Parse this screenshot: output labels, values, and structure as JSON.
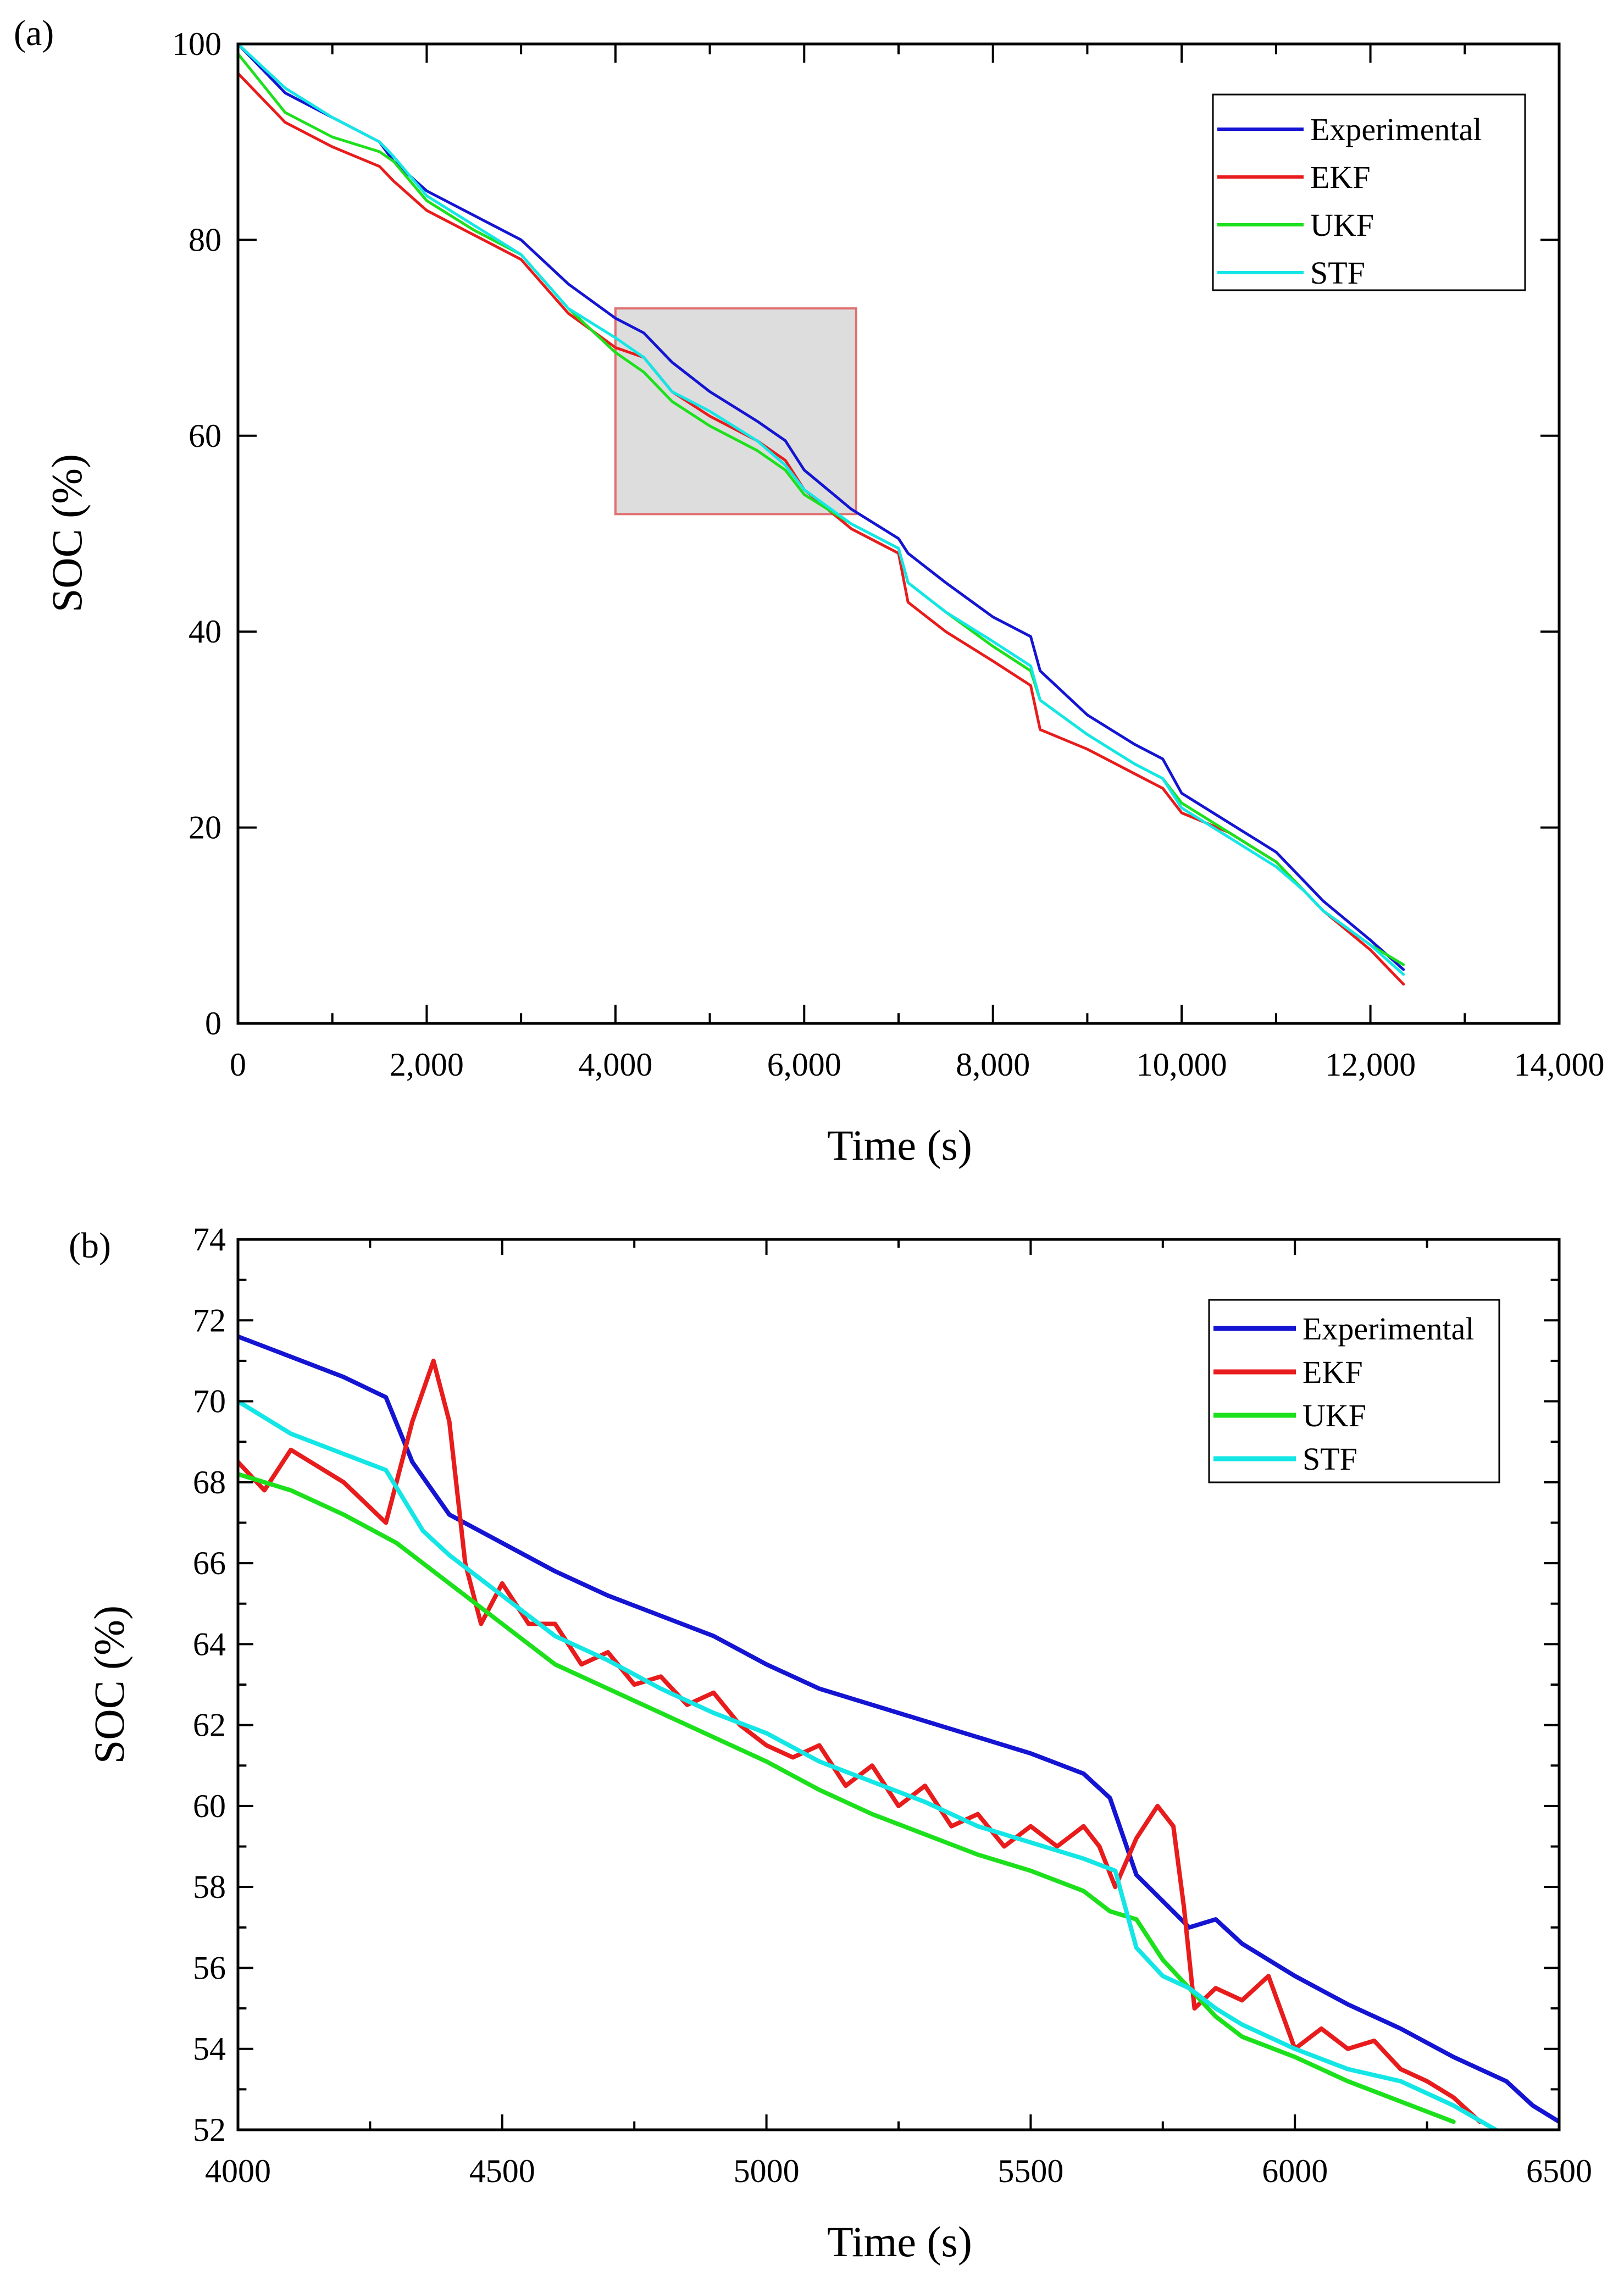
{
  "chart_data": [
    {
      "panel": "(a)",
      "type": "line",
      "xlabel": "Time (s)",
      "ylabel": "SOC (%)",
      "xlim": [
        0,
        14000
      ],
      "ylim": [
        0,
        100
      ],
      "xticks": [
        0,
        2000,
        4000,
        6000,
        8000,
        10000,
        12000,
        14000
      ],
      "xtick_labels": [
        "0",
        "2,000",
        "4,000",
        "6,000",
        "8,000",
        "10,000",
        "12,000",
        "14,000"
      ],
      "yticks": [
        0,
        20,
        40,
        60,
        80,
        100
      ],
      "ytick_labels": [
        "0",
        "20",
        "40",
        "60",
        "80",
        "100"
      ],
      "legend": [
        "Experimental",
        "EKF",
        "UKF",
        "STF"
      ],
      "legend_position": "top-right",
      "zoom_box": {
        "x": [
          4000,
          6550
        ],
        "y": [
          52,
          73
        ]
      },
      "series": [
        {
          "name": "Experimental",
          "color": "#1414d2",
          "x": [
            0,
            500,
            1000,
            1500,
            1650,
            2000,
            2500,
            3000,
            3500,
            4000,
            4300,
            4600,
            5000,
            5500,
            5800,
            6000,
            6500,
            7000,
            7100,
            7500,
            8000,
            8400,
            8500,
            9000,
            9500,
            9800,
            10000,
            10500,
            11000,
            11300,
            11500,
            12000,
            12350
          ],
          "y": [
            100,
            95,
            92.5,
            90,
            88,
            85,
            82.5,
            80,
            75.5,
            72,
            70.5,
            67.5,
            64.5,
            61.5,
            59.5,
            56.5,
            52.5,
            49.5,
            48,
            45,
            41.5,
            39.5,
            36,
            31.5,
            28.5,
            27,
            23.5,
            20.5,
            17.5,
            14.5,
            12.5,
            8.5,
            5.5
          ]
        },
        {
          "name": "EKF",
          "color": "#e81c1c",
          "x": [
            0,
            500,
            1000,
            1500,
            1650,
            2000,
            2500,
            3000,
            3500,
            4000,
            4300,
            4600,
            5000,
            5500,
            5800,
            6000,
            6500,
            7000,
            7100,
            7500,
            8000,
            8400,
            8500,
            9000,
            9500,
            9800,
            10000,
            10500,
            11000,
            11300,
            11500,
            12000,
            12350
          ],
          "y": [
            97,
            92,
            89.5,
            87.5,
            86,
            83,
            80.5,
            78,
            72.5,
            69,
            68,
            64.5,
            62,
            59.5,
            57.5,
            54.5,
            50.5,
            48,
            43,
            40,
            37,
            34.5,
            30,
            28,
            25.5,
            24,
            21.5,
            19.5,
            16.5,
            13.5,
            11.5,
            7.5,
            4
          ]
        },
        {
          "name": "UKF",
          "color": "#1de01d",
          "x": [
            0,
            500,
            1000,
            1500,
            1650,
            2000,
            2500,
            3000,
            3500,
            4000,
            4300,
            4600,
            5000,
            5500,
            5800,
            6000,
            6500,
            7000,
            7100,
            7500,
            8000,
            8400,
            8500,
            9000,
            9500,
            9800,
            10000,
            10500,
            11000,
            11300,
            11500,
            12000,
            12350
          ],
          "y": [
            99,
            93,
            90.5,
            89,
            88,
            84,
            81,
            78.5,
            73,
            68.5,
            66.5,
            63.5,
            61,
            58.5,
            56.5,
            54,
            51,
            48.5,
            45,
            42,
            38.5,
            36,
            33,
            29.5,
            26.5,
            25,
            22.5,
            19.5,
            16.5,
            13.5,
            11.5,
            8,
            6
          ]
        },
        {
          "name": "STF",
          "color": "#14e6e6",
          "x": [
            0,
            500,
            1000,
            1500,
            1650,
            2000,
            2500,
            3000,
            3500,
            4000,
            4300,
            4600,
            5000,
            5500,
            5800,
            6000,
            6500,
            7000,
            7100,
            7500,
            8000,
            8400,
            8500,
            9000,
            9500,
            9800,
            10000,
            10500,
            11000,
            11300,
            11500,
            12000,
            12350
          ],
          "y": [
            100,
            95.5,
            92.5,
            90,
            88.5,
            84.5,
            81.5,
            78.5,
            73,
            70,
            68,
            64.5,
            62.5,
            59.5,
            57,
            54.5,
            51,
            48.5,
            45,
            42,
            39,
            36.5,
            33,
            29.5,
            26.5,
            25,
            22,
            19,
            16,
            13.5,
            11.5,
            8,
            5
          ]
        }
      ]
    },
    {
      "panel": "(b)",
      "type": "line",
      "xlabel": "Time (s)",
      "ylabel": "SOC (%)",
      "xlim": [
        4000,
        6500
      ],
      "ylim": [
        52,
        74
      ],
      "xticks": [
        4000,
        4500,
        5000,
        5500,
        6000,
        6500
      ],
      "xtick_labels": [
        "4000",
        "4500",
        "5000",
        "5500",
        "6000",
        "6500"
      ],
      "yticks": [
        52,
        54,
        56,
        58,
        60,
        62,
        64,
        66,
        68,
        70,
        72,
        74
      ],
      "ytick_labels": [
        "52",
        "54",
        "56",
        "58",
        "60",
        "62",
        "64",
        "66",
        "68",
        "70",
        "72",
        "74"
      ],
      "legend": [
        "Experimental",
        "EKF",
        "UKF",
        "STF"
      ],
      "legend_position": "top-right",
      "series": [
        {
          "name": "Experimental",
          "color": "#1414d2",
          "x": [
            4000,
            4100,
            4200,
            4280,
            4330,
            4400,
            4500,
            4600,
            4700,
            4800,
            4900,
            5000,
            5100,
            5200,
            5300,
            5400,
            5500,
            5600,
            5650,
            5700,
            5800,
            5850,
            5900,
            6000,
            6100,
            6200,
            6300,
            6400,
            6450,
            6500
          ],
          "y": [
            71.6,
            71.1,
            70.6,
            70.1,
            68.5,
            67.2,
            66.5,
            65.8,
            65.2,
            64.7,
            64.2,
            63.5,
            62.9,
            62.5,
            62.1,
            61.7,
            61.3,
            60.8,
            60.2,
            58.3,
            57.0,
            57.2,
            56.6,
            55.8,
            55.1,
            54.5,
            53.8,
            53.2,
            52.6,
            52.2
          ]
        },
        {
          "name": "EKF",
          "color": "#e81c1c",
          "x": [
            4000,
            4050,
            4100,
            4200,
            4280,
            4330,
            4370,
            4400,
            4430,
            4460,
            4500,
            4550,
            4600,
            4650,
            4700,
            4750,
            4800,
            4850,
            4900,
            4950,
            5000,
            5050,
            5100,
            5150,
            5200,
            5250,
            5300,
            5350,
            5400,
            5450,
            5500,
            5550,
            5600,
            5630,
            5660,
            5700,
            5740,
            5770,
            5790,
            5810,
            5850,
            5900,
            5950,
            6000,
            6050,
            6100,
            6150,
            6200,
            6250,
            6300,
            6350
          ],
          "y": [
            68.5,
            67.8,
            68.8,
            68.0,
            67.0,
            69.5,
            71.0,
            69.5,
            66.0,
            64.5,
            65.5,
            64.5,
            64.5,
            63.5,
            63.8,
            63.0,
            63.2,
            62.5,
            62.8,
            62.0,
            61.5,
            61.2,
            61.5,
            60.5,
            61.0,
            60.0,
            60.5,
            59.5,
            59.8,
            59.0,
            59.5,
            59.0,
            59.5,
            59.0,
            58.0,
            59.2,
            60.0,
            59.5,
            57.5,
            55.0,
            55.5,
            55.2,
            55.8,
            54.0,
            54.5,
            54.0,
            54.2,
            53.5,
            53.2,
            52.8,
            52.2
          ]
        },
        {
          "name": "UKF",
          "color": "#1de01d",
          "x": [
            4000,
            4100,
            4200,
            4300,
            4400,
            4500,
            4600,
            4700,
            4800,
            4900,
            5000,
            5100,
            5200,
            5300,
            5400,
            5500,
            5600,
            5650,
            5700,
            5750,
            5800,
            5850,
            5900,
            6000,
            6100,
            6200,
            6300
          ],
          "y": [
            68.2,
            67.8,
            67.2,
            66.5,
            65.5,
            64.5,
            63.5,
            62.9,
            62.3,
            61.7,
            61.1,
            60.4,
            59.8,
            59.3,
            58.8,
            58.4,
            57.9,
            57.4,
            57.2,
            56.2,
            55.5,
            54.8,
            54.3,
            53.8,
            53.2,
            52.7,
            52.2
          ]
        },
        {
          "name": "STF",
          "color": "#14e6e6",
          "x": [
            4000,
            4100,
            4200,
            4280,
            4350,
            4400,
            4500,
            4600,
            4700,
            4800,
            4900,
            5000,
            5100,
            5200,
            5300,
            5400,
            5500,
            5600,
            5660,
            5700,
            5750,
            5800,
            5850,
            5900,
            6000,
            6100,
            6200,
            6300,
            6380
          ],
          "y": [
            70.0,
            69.2,
            68.7,
            68.3,
            66.8,
            66.2,
            65.2,
            64.2,
            63.6,
            62.9,
            62.3,
            61.8,
            61.1,
            60.6,
            60.1,
            59.5,
            59.1,
            58.7,
            58.4,
            56.5,
            55.8,
            55.5,
            55.0,
            54.6,
            54.0,
            53.5,
            53.2,
            52.6,
            52.0
          ]
        }
      ]
    }
  ]
}
